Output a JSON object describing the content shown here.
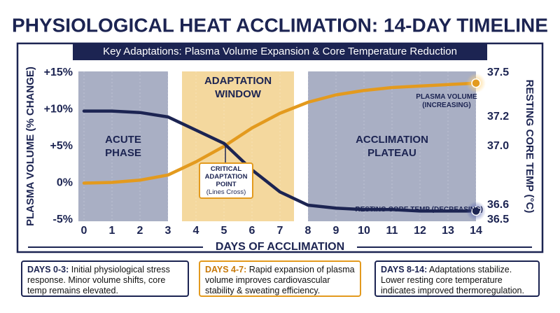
{
  "chart_data": {
    "type": "line",
    "title": "PHYSIOLOGICAL HEAT ACCLIMATION: 14-DAY TIMELINE",
    "subtitle": "Key Adaptations: Plasma Volume Expansion & Core Temperature Reduction",
    "x_label": "DAYS OF ACCLIMATION",
    "y_label": "PLASMA VOLUME (% CHANGE)",
    "y2_label": "RESTING CORE TEMP (°C)",
    "x": [
      0,
      1,
      2,
      3,
      4,
      5,
      6,
      7,
      8,
      9,
      10,
      11,
      12,
      13,
      14
    ],
    "xlim": [
      0,
      14
    ],
    "xticks": [
      0,
      1,
      2,
      3,
      4,
      5,
      6,
      7,
      8,
      9,
      10,
      11,
      12,
      13,
      14
    ],
    "ylim": [
      -5,
      15
    ],
    "yticks": [
      {
        "value": -5,
        "label": "-5%"
      },
      {
        "value": 0,
        "label": "0%"
      },
      {
        "value": 5,
        "label": "+5%"
      },
      {
        "value": 10,
        "label": "+10%"
      },
      {
        "value": 15,
        "label": "+15%"
      }
    ],
    "y2lim": [
      36.5,
      37.5
    ],
    "y2ticks": [
      36.5,
      36.6,
      {
        "value": 37,
        "label": "37.0"
      },
      37.2,
      37.5
    ],
    "grid": false,
    "series": [
      {
        "name": "PLASMA VOLUME (INCREASING)",
        "color": "#e39a1e",
        "values": [
          0,
          0.1,
          0.4,
          1.1,
          2.9,
          5,
          7.5,
          9.5,
          11,
          12,
          12.6,
          13,
          13.2,
          13.4,
          13.6
        ]
      },
      {
        "name": "RESTING CORE TEMP (DECREASING)",
        "color": "#1c2452",
        "axis": "y2",
        "values": [
          37.24,
          37.24,
          37.23,
          37.2,
          37.11,
          37.02,
          36.84,
          36.69,
          36.6,
          36.58,
          36.57,
          36.57,
          36.56,
          36.56,
          36.56
        ]
      }
    ],
    "phases": [
      {
        "lines": [
          "ACUTE",
          "PHASE"
        ],
        "from": -0.2,
        "to": 3,
        "color": "#a9afc4"
      },
      {
        "lines": [
          "ADAPTATION",
          "WINDOW"
        ],
        "from": 3.5,
        "to": 7.5,
        "color": "#f4d89e"
      },
      {
        "lines": [
          "ACCLIMATION",
          "PLATEAU"
        ],
        "from": 8,
        "to": 14,
        "color": "#a9afc4"
      }
    ],
    "annotation": {
      "lines": [
        "CRITICAL",
        "ADAPTATION",
        "POINT"
      ],
      "note": "(Lines Cross)"
    },
    "notes": [
      {
        "heading": "DAYS 0-3:",
        "text": "Initial physiological stress response. Minor volume shifts, core temp remains elevated."
      },
      {
        "heading": "DAYS 4-7:",
        "text": "Rapid expansion of plasma volume improves cardiovascular stability & sweating efficiency."
      },
      {
        "heading": "DAYS 8-14:",
        "text": "Adaptations stabilize. Lower resting core temperature indicates improved thermoregulation."
      }
    ]
  }
}
